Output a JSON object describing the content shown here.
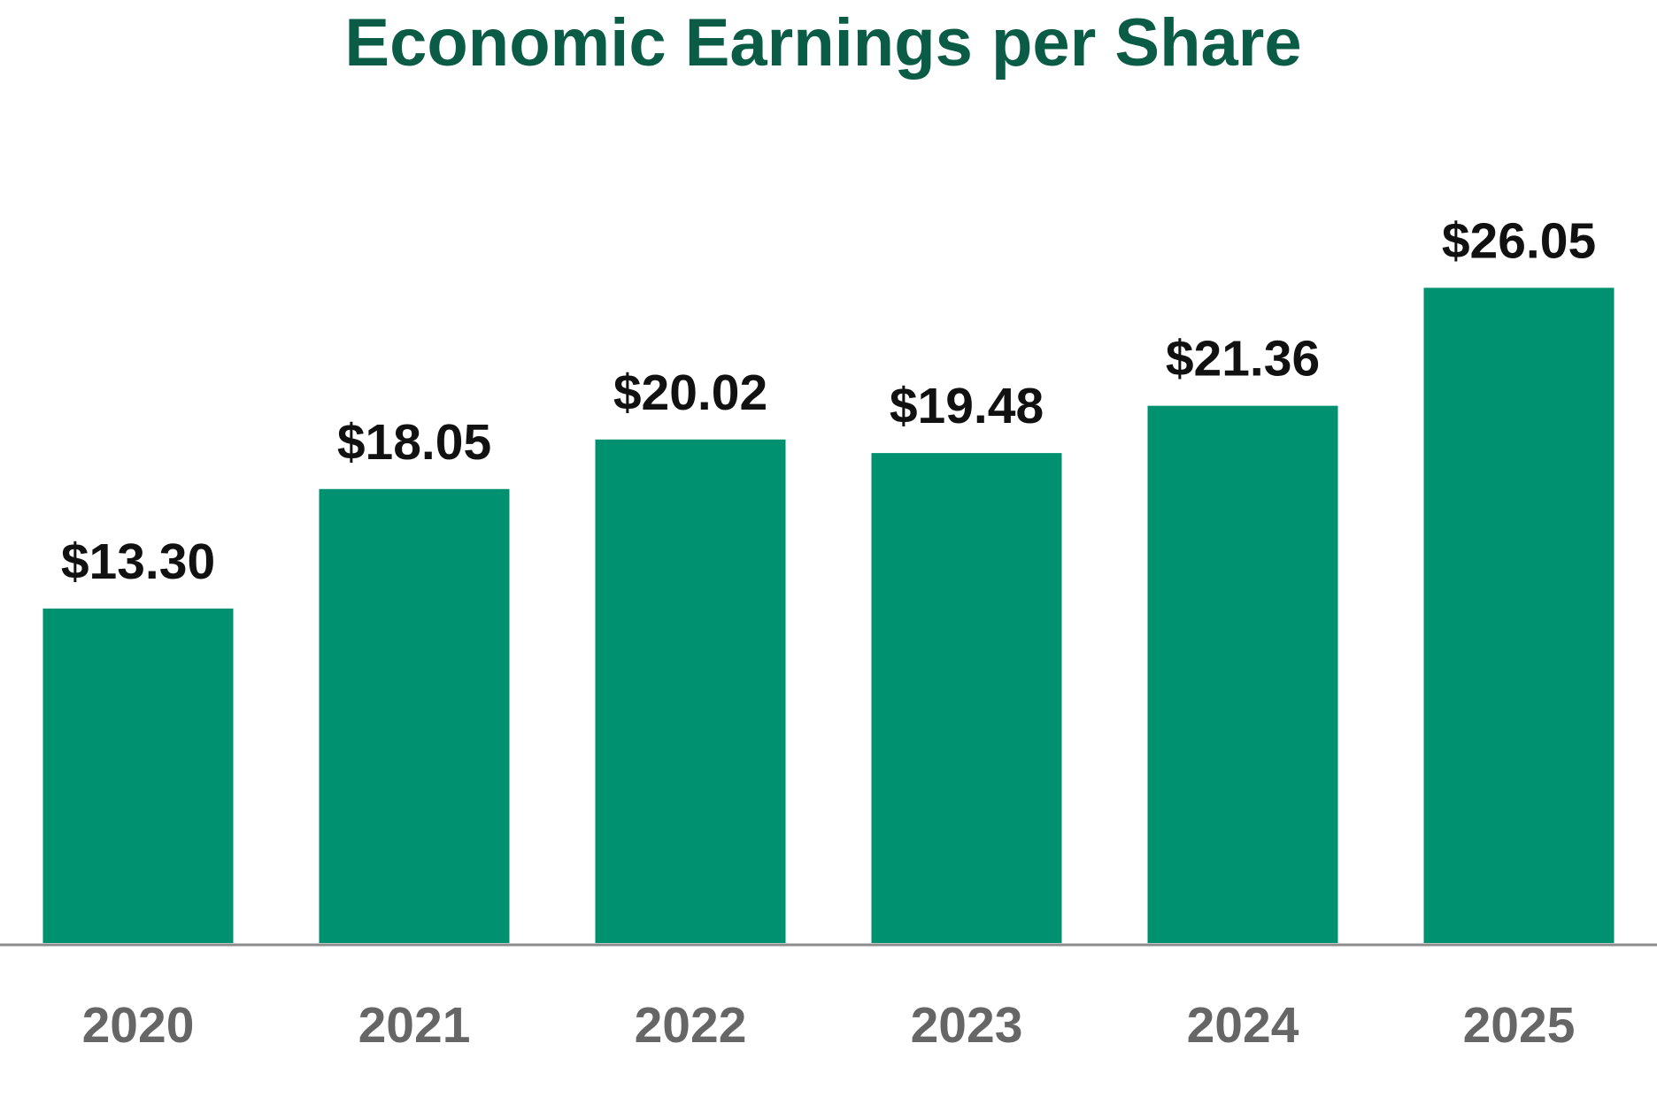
{
  "chart_data": {
    "type": "bar",
    "title": "Economic Earnings per Share",
    "categories": [
      "2020",
      "2021",
      "2022",
      "2023",
      "2024",
      "2025"
    ],
    "values": [
      13.3,
      18.05,
      20.02,
      19.48,
      21.36,
      26.05
    ],
    "value_labels": [
      "$13.30",
      "$18.05",
      "$20.02",
      "$19.48",
      "$21.36",
      "$26.05"
    ],
    "color": "#009270",
    "ylim": [
      0,
      30
    ]
  }
}
